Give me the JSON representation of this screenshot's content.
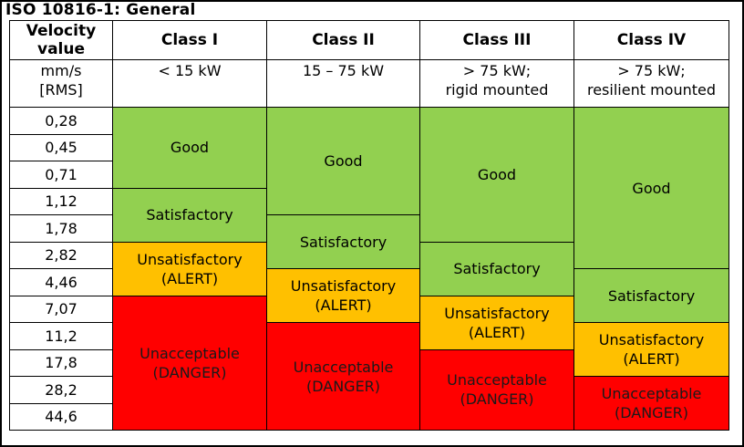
{
  "title": "ISO 10816-1: General",
  "header": {
    "velocity_line1": "Velocity",
    "velocity_line2": "value",
    "classes": [
      "Class I",
      "Class II",
      "Class III",
      "Class IV"
    ]
  },
  "units": {
    "line1": "mm/s",
    "line2": "[RMS]"
  },
  "class_power": [
    {
      "line1": "< 15 kW",
      "line2": ""
    },
    {
      "line1": "15 – 75 kW",
      "line2": ""
    },
    {
      "line1": "> 75 kW;",
      "line2": "rigid mounted"
    },
    {
      "line1": "> 75 kW;",
      "line2": "resilient mounted"
    }
  ],
  "velocities": [
    "0,28",
    "0,45",
    "0,71",
    "1,12",
    "1,78",
    "2,82",
    "4,46",
    "7,07",
    "11,2",
    "17,8",
    "28,2",
    "44,6"
  ],
  "zones": {
    "good": "Good",
    "satisfactory": "Satisfactory",
    "unsatisfactory_line1": "Unsatisfactory",
    "unsatisfactory_line2": "(ALERT)",
    "unacceptable_line1": "Unacceptable",
    "unacceptable_line2": "(DANGER)"
  },
  "colors": {
    "good": "#92d050",
    "satisfactory": "#92d050",
    "unsatisfactory": "#ffc000",
    "unacceptable": "#ff0000"
  }
}
